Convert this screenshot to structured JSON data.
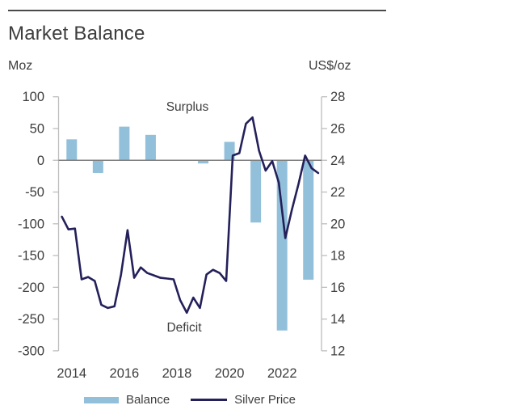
{
  "header": {
    "title": "Market Balance",
    "left_unit": "Moz",
    "right_unit": "US$/oz"
  },
  "chart_data": {
    "type": "combo-bar-line",
    "title": "Market Balance",
    "grid": "off",
    "legend_position": "bottom",
    "bar_series": {
      "name": "Balance",
      "axis": "left",
      "unit": "Moz",
      "categories": [
        2014,
        2015,
        2016,
        2017,
        2018,
        2019,
        2020,
        2021,
        2022,
        2023
      ],
      "values": [
        33,
        -20,
        53,
        40,
        0,
        -5,
        29,
        -98,
        -268,
        -188
      ]
    },
    "line_series": {
      "name": "Silver Price",
      "axis": "right",
      "unit": "US$/oz",
      "frequency": "quarterly",
      "start": "2014Q1",
      "values": [
        20.45,
        19.65,
        19.7,
        16.5,
        16.65,
        16.4,
        14.9,
        14.7,
        14.8,
        16.8,
        19.6,
        16.6,
        17.25,
        16.9,
        16.75,
        16.6,
        16.55,
        16.5,
        15.2,
        14.4,
        15.35,
        14.7,
        16.8,
        17.1,
        16.9,
        16.4,
        24.3,
        24.45,
        26.3,
        26.7,
        24.6,
        23.35,
        23.95,
        22.6,
        19.1,
        20.9,
        22.5,
        24.3,
        23.5,
        23.2
      ]
    },
    "left_axis": {
      "label": "Moz",
      "ticks": [
        100,
        50,
        0,
        -50,
        -100,
        -150,
        -200,
        -250,
        -300
      ],
      "range": [
        -300,
        100
      ]
    },
    "right_axis": {
      "label": "US$/oz",
      "ticks": [
        28,
        26,
        24,
        22,
        20,
        18,
        16,
        14,
        12
      ],
      "range": [
        12,
        28
      ]
    },
    "x_axis": {
      "tick_labels": [
        "2014",
        "2016",
        "2018",
        "2020",
        "2022"
      ]
    },
    "annotations": {
      "surplus": "Surplus",
      "deficit": "Deficit"
    },
    "colors": {
      "bar": "#92c0da",
      "line": "#23205a",
      "zero_line": "#7f7f7f",
      "axis": "#bdbdbd",
      "text": "#3d3d3d",
      "top_rule": "#4a4a4a"
    }
  },
  "legend": {
    "items": [
      {
        "label": "Balance",
        "type": "bar"
      },
      {
        "label": "Silver Price",
        "type": "line"
      }
    ]
  }
}
